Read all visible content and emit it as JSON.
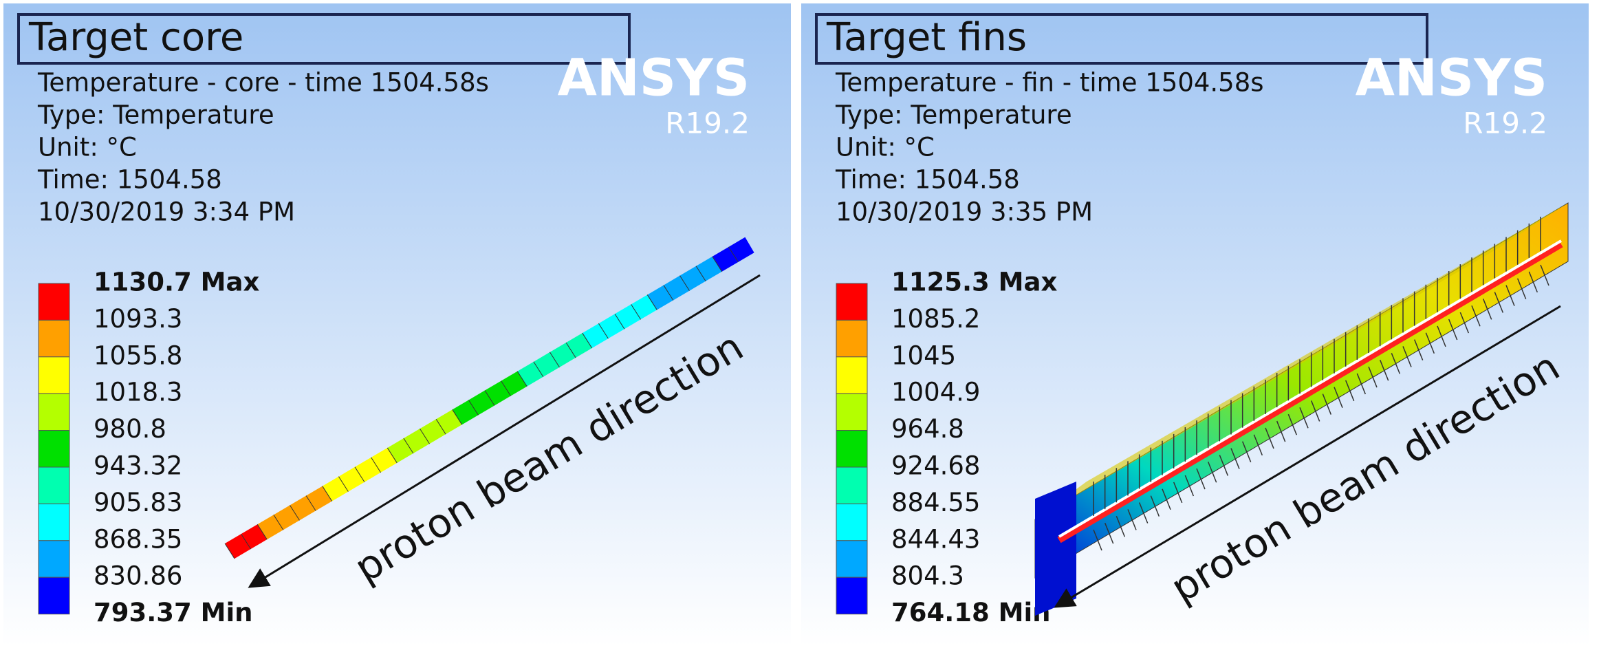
{
  "panels": [
    {
      "title": "Target core",
      "info": [
        "Temperature - core - time 1504.58s",
        "Type: Temperature",
        "Unit: °C",
        "Time: 1504.58",
        "10/30/2019 3:34 PM"
      ],
      "logo": "ANSYS",
      "version": "R19.2",
      "legend": [
        "1130.7 Max",
        "1093.3",
        "1055.8",
        "1018.3",
        "980.8",
        "943.32",
        "905.83",
        "868.35",
        "830.86",
        "793.37 Min"
      ],
      "arrow_label": "proton beam direction"
    },
    {
      "title": "Target fins",
      "info": [
        "Temperature - fin - time 1504.58s",
        "Type: Temperature",
        "Unit: °C",
        "Time: 1504.58",
        "10/30/2019 3:35 PM"
      ],
      "logo": "ANSYS",
      "version": "R19.2",
      "legend": [
        "1125.3 Max",
        "1085.2",
        "1045",
        "1004.9",
        "964.8",
        "924.68",
        "884.55",
        "844.43",
        "804.3",
        "764.18 Min"
      ],
      "arrow_label": "proton beam direction"
    }
  ],
  "legend_colors": [
    "#ff0000",
    "#ffa000",
    "#ffff00",
    "#b4ff00",
    "#00e000",
    "#00ffb0",
    "#00ffff",
    "#00a8ff",
    "#0000ff"
  ]
}
